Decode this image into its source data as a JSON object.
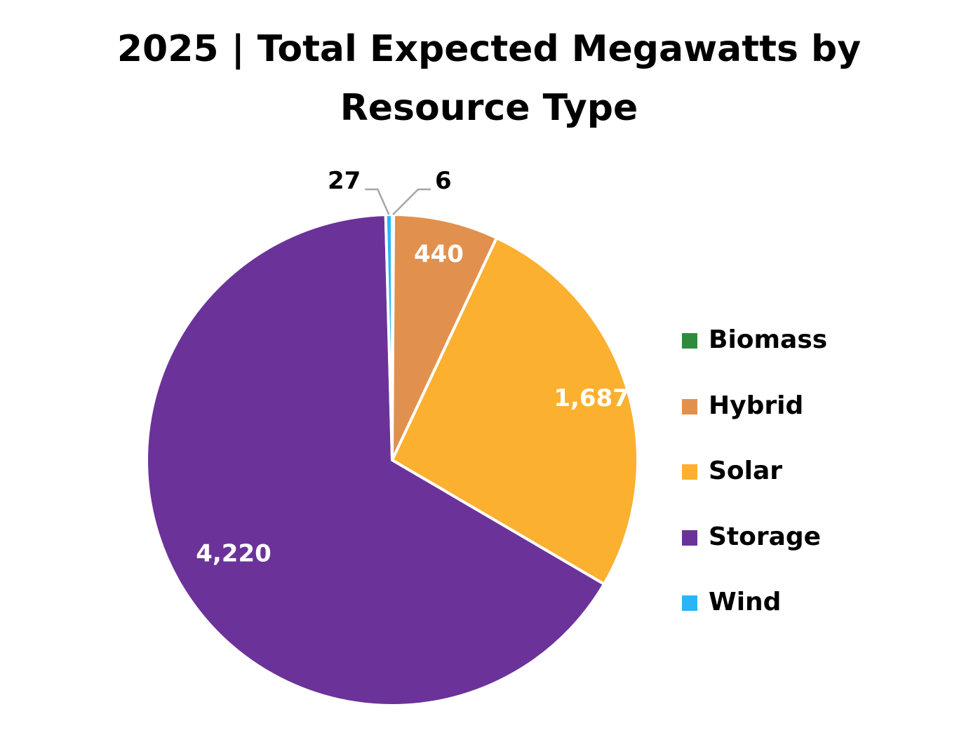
{
  "chart_data": {
    "type": "pie",
    "title": "2025 | Total Expected Megawatts by Resource Type",
    "title_lines": [
      "2025 | Total Expected Megawatts by",
      "Resource Type"
    ],
    "categories": [
      "Biomass",
      "Hybrid",
      "Solar",
      "Storage",
      "Wind"
    ],
    "values": [
      6,
      440,
      1687,
      4220,
      27
    ],
    "value_labels": [
      "6",
      "440",
      "1,687",
      "4,220",
      "27"
    ],
    "colors": [
      "#2e8b3e",
      "#e2904e",
      "#fbb030",
      "#6b3399",
      "#29b6f6"
    ],
    "start_position": "top, clockwise",
    "legend_position": "right",
    "label_color_inside": "#ffffff",
    "label_color_outside": "#000000"
  }
}
